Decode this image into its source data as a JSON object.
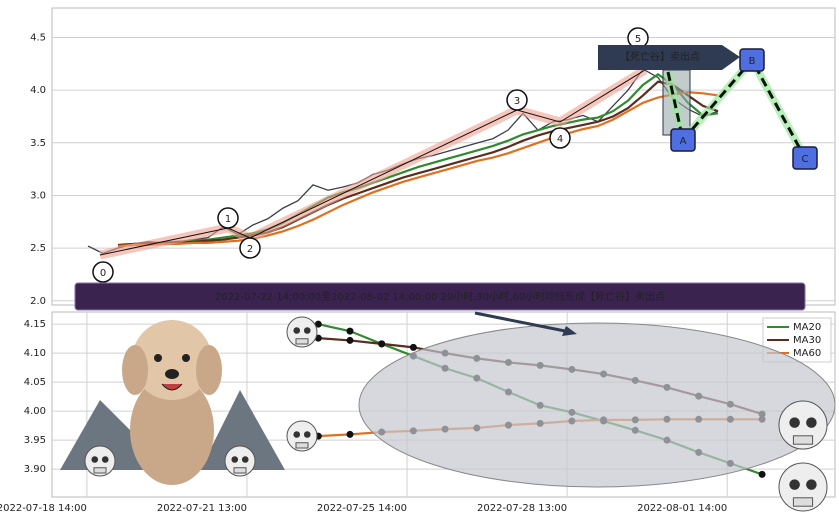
{
  "chart_data": [
    {
      "type": "line",
      "x": [
        0,
        1,
        2,
        3,
        4,
        5,
        6,
        7,
        8,
        9,
        10,
        11,
        12,
        13,
        14,
        15,
        16,
        17,
        18,
        19,
        20,
        21,
        22,
        23,
        24,
        25,
        26,
        27,
        28,
        29,
        30,
        31,
        32,
        33,
        34,
        35,
        36,
        37,
        38,
        39,
        40,
        41,
        42
      ],
      "xlim": [
        -2.4,
        49.8
      ],
      "ylim": [
        1.96,
        4.78
      ],
      "yticks": [
        {
          "value": 2,
          "label": "2.0"
        },
        2.5,
        {
          "value": 3,
          "label": "3.0"
        },
        3.5,
        {
          "value": 4,
          "label": "4.0"
        },
        4.5
      ],
      "grid": true,
      "series": [
        {
          "color": "#3a3f4a",
          "values": [
            2.52,
            2.45,
            2.5,
            2.54,
            2.56,
            2.55,
            2.56,
            2.58,
            2.6,
            2.7,
            2.63,
            2.72,
            2.78,
            2.88,
            2.95,
            3.1,
            3.05,
            3.08,
            3.12,
            3.2,
            3.24,
            3.3,
            3.35,
            3.38,
            3.42,
            3.46,
            3.5,
            3.54,
            3.62,
            3.78,
            3.62,
            3.7,
            3.72,
            3.76,
            3.7,
            3.85,
            4.0,
            4.2,
            4.12,
            3.92,
            3.82,
            3.75,
            3.8
          ]
        },
        {
          "color": "#2e8b2e",
          "values": [
            null,
            null,
            2.52,
            2.53,
            2.54,
            2.55,
            2.56,
            2.57,
            2.58,
            2.6,
            2.62,
            2.64,
            2.68,
            2.74,
            2.82,
            2.9,
            2.98,
            3.03,
            3.07,
            3.12,
            3.17,
            3.22,
            3.27,
            3.31,
            3.35,
            3.39,
            3.43,
            3.47,
            3.52,
            3.58,
            3.62,
            3.66,
            3.69,
            3.72,
            3.74,
            3.8,
            3.9,
            4.05,
            4.15,
            4.05,
            3.88,
            3.76,
            3.78
          ]
        },
        {
          "color": "#5a2d1e",
          "values": [
            null,
            null,
            2.53,
            2.54,
            2.55,
            2.55,
            2.56,
            2.56,
            2.57,
            2.58,
            2.6,
            2.62,
            2.65,
            2.7,
            2.77,
            2.84,
            2.91,
            2.97,
            3.02,
            3.07,
            3.12,
            3.17,
            3.21,
            3.25,
            3.29,
            3.33,
            3.37,
            3.41,
            3.46,
            3.52,
            3.57,
            3.61,
            3.64,
            3.67,
            3.7,
            3.75,
            3.83,
            3.95,
            4.08,
            4.05,
            3.95,
            3.85,
            3.8
          ]
        },
        {
          "color": "#e07020",
          "values": [
            null,
            null,
            2.52,
            2.53,
            2.53,
            2.54,
            2.54,
            2.55,
            2.55,
            2.56,
            2.57,
            2.59,
            2.62,
            2.66,
            2.71,
            2.77,
            2.84,
            2.91,
            2.97,
            3.03,
            3.08,
            3.13,
            3.17,
            3.21,
            3.25,
            3.29,
            3.33,
            3.36,
            3.4,
            3.45,
            3.5,
            3.55,
            3.59,
            3.63,
            3.66,
            3.72,
            3.8,
            3.88,
            3.93,
            3.96,
            3.98,
            3.97,
            3.95
          ]
        }
      ],
      "wave_labels": [
        "0",
        "1",
        "2",
        "3",
        "4",
        "5"
      ],
      "point_labels": [
        "A",
        "B",
        "C"
      ],
      "signal_label": "【死亡谷】卖出点"
    },
    {
      "type": "line",
      "banner": "2022-07-22 14:00:00至2022-08-02 14:00:00 20小时,30小时,60小时均线形成【死亡谷】卖出点",
      "x": [
        0,
        1,
        2,
        3,
        4,
        5,
        6,
        7,
        8,
        9,
        10,
        11,
        12,
        13,
        14
      ],
      "xlim": [
        -8.4,
        16.3
      ],
      "ylim": [
        3.852,
        4.171
      ],
      "xticks": [
        {
          "value": -7.3,
          "label": "2022-07-18 14:00"
        },
        {
          "value": -2.25,
          "label": "2022-07-21 13:00"
        },
        {
          "value": 2.8,
          "label": "2022-07-25 14:00"
        },
        {
          "value": 7.85,
          "label": "2022-07-28 13:00"
        },
        {
          "value": 12.9,
          "label": "2022-08-01 14:00"
        }
      ],
      "yticks": [
        {
          "value": 3.9,
          "label": "3.90"
        },
        3.95,
        {
          "value": 4,
          "label": "4.00"
        },
        4.05,
        {
          "value": 4.1,
          "label": "4.10"
        },
        4.15
      ],
      "grid": true,
      "legend": "upper right",
      "series": [
        {
          "name": "MA20",
          "color": "#2e8b2e",
          "values": [
            4.15,
            4.138,
            4.116,
            4.095,
            4.074,
            4.057,
            4.033,
            4.01,
            3.998,
            3.983,
            3.967,
            3.95,
            3.929,
            3.91,
            3.891
          ]
        },
        {
          "name": "MA30",
          "color": "#5a2d1e",
          "values": [
            4.126,
            4.122,
            4.116,
            4.11,
            4.1,
            4.091,
            4.084,
            4.079,
            4.072,
            4.064,
            4.053,
            4.041,
            4.026,
            4.012,
            3.995
          ]
        },
        {
          "name": "MA60",
          "color": "#e07020",
          "values": [
            3.957,
            3.96,
            3.964,
            3.966,
            3.969,
            3.971,
            3.976,
            3.979,
            3.983,
            3.985,
            3.985,
            3.986,
            3.986,
            3.986,
            3.986
          ]
        }
      ]
    }
  ]
}
